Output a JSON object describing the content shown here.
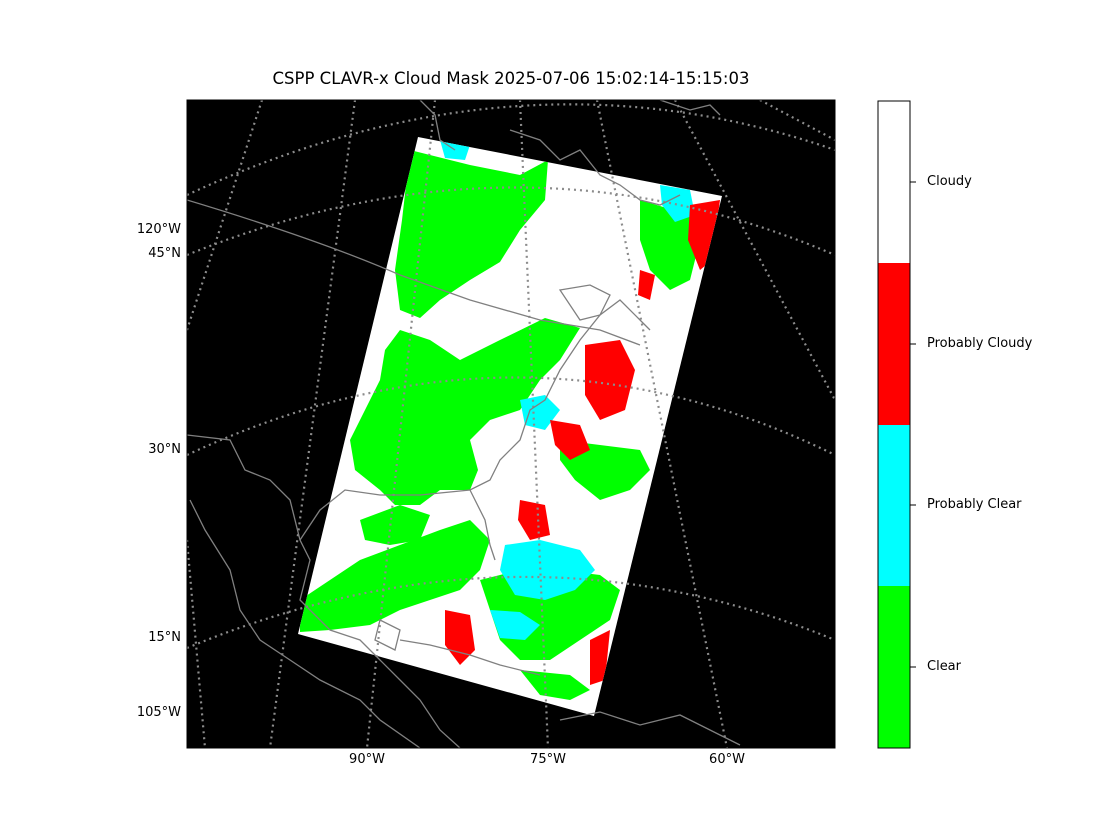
{
  "title": "CSPP CLAVR-x Cloud Mask 2025-07-06 15:02:14-15:15:03",
  "lat_labels": [
    "45°N",
    "30°N",
    "15°N"
  ],
  "lon_labels_left": [
    "120°W",
    "105°W"
  ],
  "lon_labels_bottom": [
    "90°W",
    "75°W",
    "60°W"
  ],
  "colorbar": {
    "classes": [
      {
        "label": "Cloudy",
        "color": "#ffffff"
      },
      {
        "label": "Probably Cloudy",
        "color": "#ff0000"
      },
      {
        "label": "Probably Clear",
        "color": "#00ffff"
      },
      {
        "label": "Clear",
        "color": "#00ff00"
      }
    ]
  },
  "map_style": {
    "background": "#000000",
    "coastline_color": "#808080",
    "graticule_color": "#8c8c8c",
    "graticule_style": "dotted"
  }
}
